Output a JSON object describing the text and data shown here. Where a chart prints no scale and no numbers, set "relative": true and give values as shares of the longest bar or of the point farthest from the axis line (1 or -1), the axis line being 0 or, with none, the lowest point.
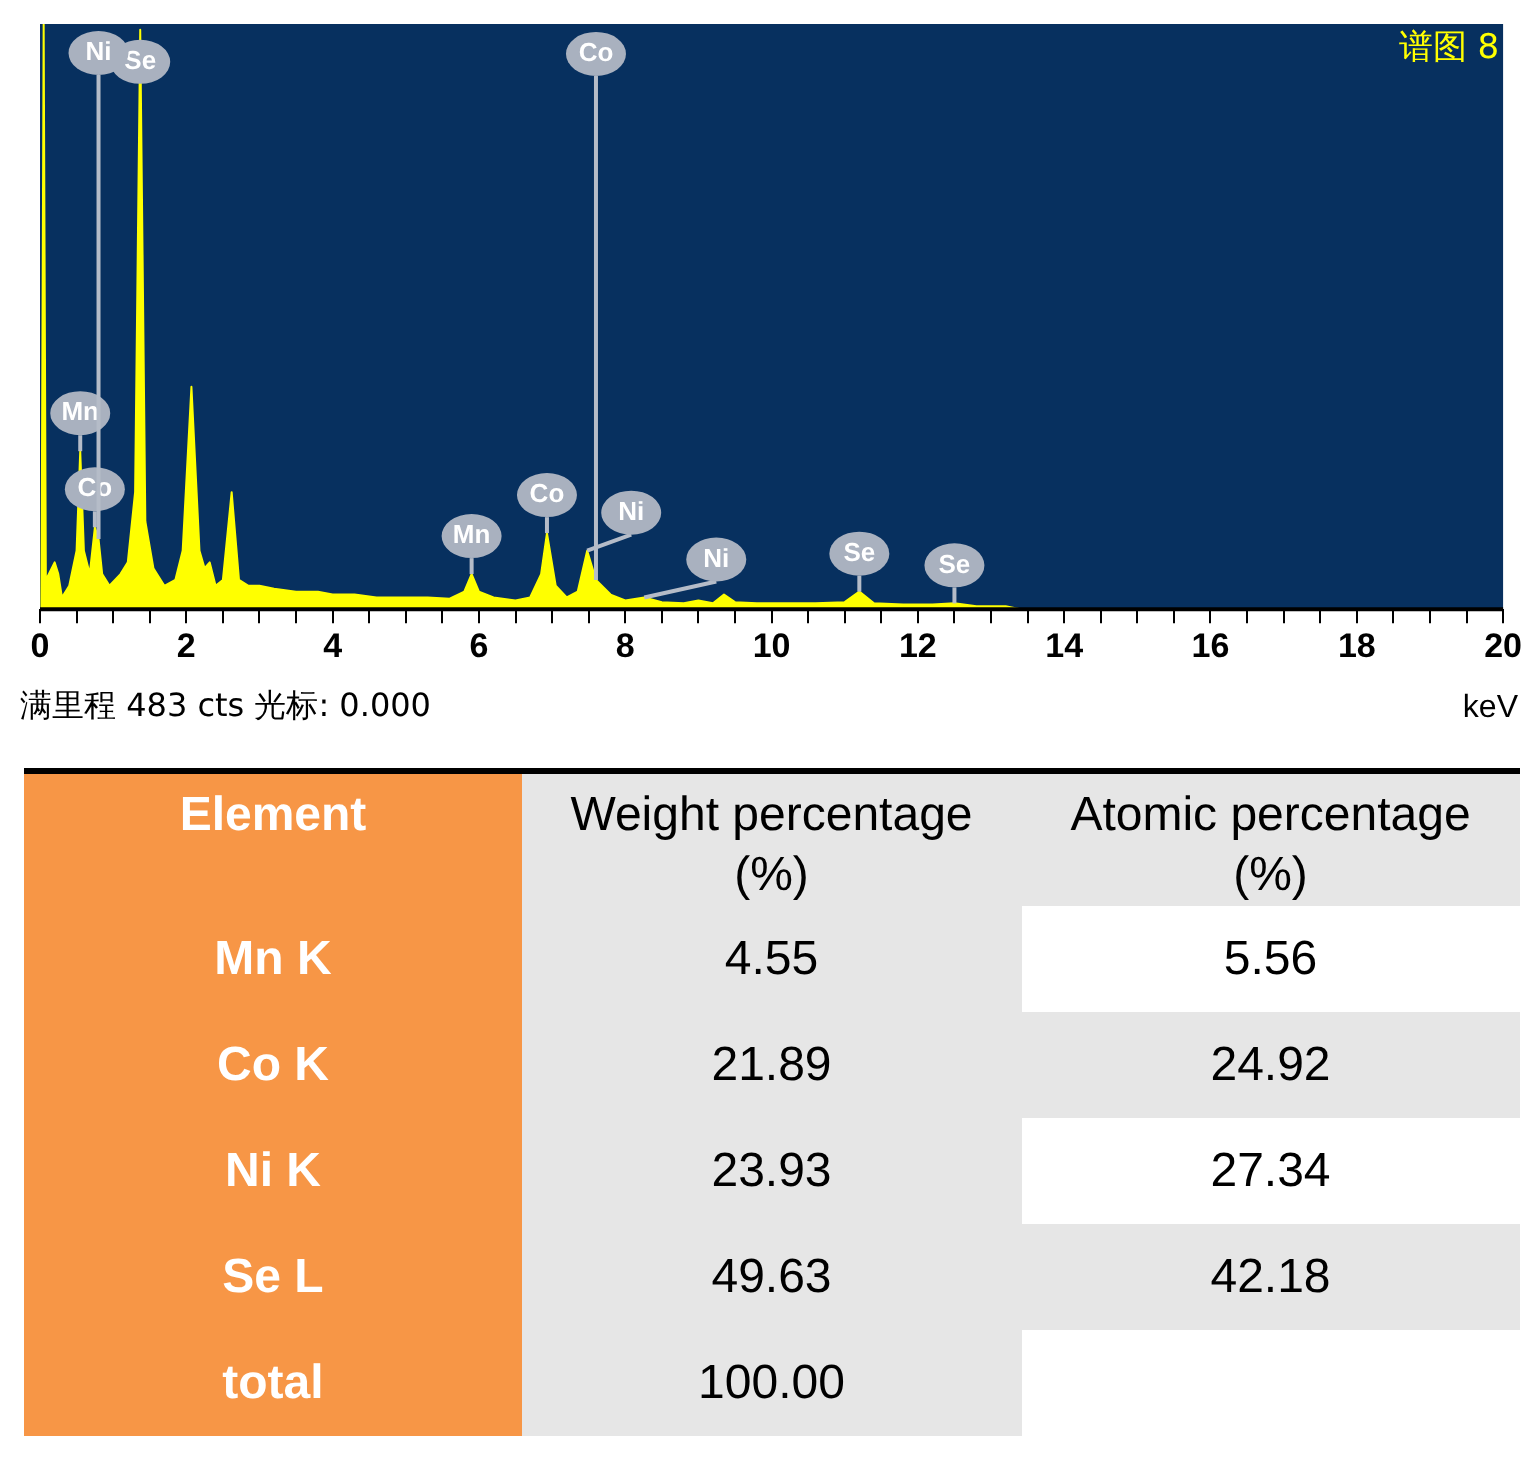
{
  "chart_data": [
    {
      "type": "area",
      "title": "谱图 8",
      "xlabel": "keV",
      "relative": true,
      "legend": false,
      "grid": false,
      "color": "#ffff00",
      "x": [
        0,
        0.02,
        0.05,
        0.08,
        0.12,
        0.2,
        0.25,
        0.3,
        0.4,
        0.5,
        0.55,
        0.6,
        0.68,
        0.75,
        0.8,
        0.85,
        0.95,
        1.1,
        1.2,
        1.3,
        1.37,
        1.44,
        1.55,
        1.7,
        1.85,
        1.95,
        2.07,
        2.18,
        2.25,
        2.32,
        2.4,
        2.5,
        2.62,
        2.72,
        2.85,
        3.0,
        3.2,
        3.5,
        3.8,
        4.0,
        4.3,
        4.6,
        5.0,
        5.3,
        5.6,
        5.8,
        5.9,
        6.0,
        6.2,
        6.5,
        6.7,
        6.85,
        6.93,
        7.05,
        7.2,
        7.35,
        7.48,
        7.6,
        7.8,
        8.0,
        8.26,
        8.5,
        8.8,
        9.0,
        9.2,
        9.35,
        9.5,
        9.8,
        10.2,
        10.6,
        11.0,
        11.2,
        11.4,
        11.8,
        12.2,
        12.5,
        12.8,
        13.2,
        13.4
      ],
      "values": [
        0,
        0.02,
        1,
        0.05,
        0.06,
        0.08,
        0.06,
        0.02,
        0.04,
        0.1,
        0.27,
        0.1,
        0.06,
        0.14,
        0.12,
        0.06,
        0.04,
        0.06,
        0.08,
        0.2,
        0.99,
        0.15,
        0.07,
        0.04,
        0.05,
        0.1,
        0.38,
        0.1,
        0.07,
        0.08,
        0.04,
        0.05,
        0.2,
        0.05,
        0.04,
        0.04,
        0.035,
        0.03,
        0.03,
        0.025,
        0.025,
        0.02,
        0.02,
        0.02,
        0.018,
        0.03,
        0.06,
        0.03,
        0.02,
        0.015,
        0.02,
        0.06,
        0.13,
        0.04,
        0.02,
        0.03,
        0.1,
        0.05,
        0.025,
        0.015,
        0.02,
        0.012,
        0.01,
        0.015,
        0.01,
        0.025,
        0.012,
        0.01,
        0.01,
        0.01,
        0.012,
        0.03,
        0.01,
        0.008,
        0.008,
        0.01,
        0.005,
        0.005,
        0
      ],
      "xlim": [
        0,
        20
      ],
      "xticks": [
        0,
        {
          "value": 0.5,
          "label": null
        },
        2,
        {
          "value": 1,
          "label": null
        },
        {
          "value": 1.5,
          "label": null
        },
        {
          "value": 2.5,
          "label": null
        },
        {
          "value": 3,
          "label": null
        },
        {
          "value": 3.5,
          "label": null
        },
        4,
        {
          "value": 4.5,
          "label": null
        },
        {
          "value": 5,
          "label": null
        },
        {
          "value": 5.5,
          "label": null
        },
        6,
        {
          "value": 6.5,
          "label": null
        },
        {
          "value": 7,
          "label": null
        },
        {
          "value": 7.5,
          "label": null
        },
        8,
        {
          "value": 8.5,
          "label": null
        },
        {
          "value": 9,
          "label": null
        },
        {
          "value": 9.5,
          "label": null
        },
        10,
        {
          "value": 10.5,
          "label": null
        },
        {
          "value": 11,
          "label": null
        },
        {
          "value": 11.5,
          "label": null
        },
        12,
        {
          "value": 12.5,
          "label": null
        },
        {
          "value": 13,
          "label": null
        },
        {
          "value": 13.5,
          "label": null
        },
        14,
        {
          "value": 14.5,
          "label": null
        },
        {
          "value": 15,
          "label": null
        },
        {
          "value": 15.5,
          "label": null
        },
        16,
        {
          "value": 16.5,
          "label": null
        },
        {
          "value": 17,
          "label": null
        },
        {
          "value": 17.5,
          "label": null
        },
        18,
        {
          "value": 18.5,
          "label": null
        },
        {
          "value": 19,
          "label": null
        },
        {
          "value": 19.5,
          "label": null
        },
        20
      ],
      "annotations": [
        {
          "text": "Se",
          "x": 1.37,
          "y": 0.99
        },
        {
          "text": "Mn",
          "x": 0.55,
          "y": 0.27
        },
        {
          "text": "Co",
          "x": 0.75,
          "y": 0.14
        },
        {
          "text": "Ni",
          "x": 0.8,
          "y": 0.12
        },
        {
          "text": "Mn",
          "x": 5.9,
          "y": 0.06
        },
        {
          "text": "Co",
          "x": 6.93,
          "y": 0.13
        },
        {
          "text": "Ni",
          "x": 7.48,
          "y": 0.1
        },
        {
          "text": "Co",
          "x": 7.6,
          "y": 0.05
        },
        {
          "text": "Ni",
          "x": 8.26,
          "y": 0.02
        },
        {
          "text": "Se",
          "x": 11.2,
          "y": 0.03
        },
        {
          "text": "Se",
          "x": 12.5,
          "y": 0.01
        },
        "满里程 483 cts 光标: 0.000"
      ]
    },
    {
      "type": "other",
      "xlabel": "Element",
      "data_labels": true,
      "categories": [
        "Mn K",
        "Co K",
        "Ni K",
        "Se L",
        "total"
      ],
      "series": [
        {
          "name": "Weight percentage (%)",
          "color": "#e6e6e6",
          "values": [
            4.55,
            21.89,
            23.93,
            49.63,
            100.0
          ],
          "value_labels": [
            "4.55",
            "21.89",
            "23.93",
            "49.63",
            "100.00"
          ]
        },
        {
          "name": "Atomic percentage (%)",
          "colors": [
            "#ffffff",
            "#e6e6e6",
            "#ffffff",
            "#e6e6e6",
            "#ffffff"
          ],
          "values": [
            5.56,
            24.92,
            27.34,
            42.18,
            null
          ]
        }
      ]
    }
  ]
}
